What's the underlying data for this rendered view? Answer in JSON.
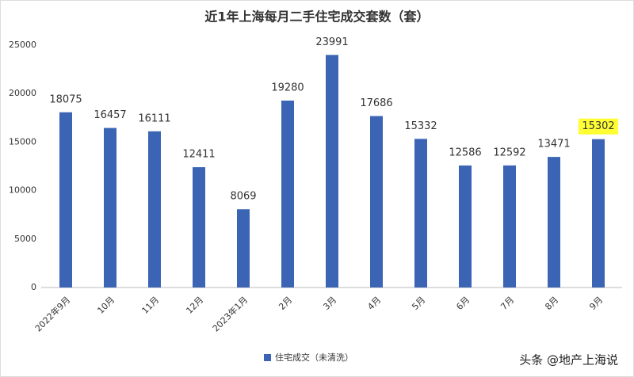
{
  "chart_data": {
    "type": "bar",
    "title": "近1年上海每月二手住宅成交套数（套）",
    "categories": [
      "2022年9月",
      "10月",
      "11月",
      "12月",
      "2023年1月",
      "2月",
      "3月",
      "4月",
      "5月",
      "6月",
      "7月",
      "8月",
      "9月"
    ],
    "series": [
      {
        "name": "住宅成交（未清洗）",
        "color": "#3b64b4",
        "values": [
          18075,
          16457,
          16111,
          12411,
          8069,
          19280,
          23991,
          17686,
          15332,
          12586,
          12592,
          13471,
          15302
        ]
      }
    ],
    "ylim": [
      0,
      25000
    ],
    "yticks": [
      0,
      5000,
      10000,
      15000,
      20000,
      25000
    ],
    "grid": false,
    "legend": "bottom",
    "highlighted_label": 12,
    "highlight_color": "#ffff33",
    "watermark": "头条 @地产上海说"
  }
}
